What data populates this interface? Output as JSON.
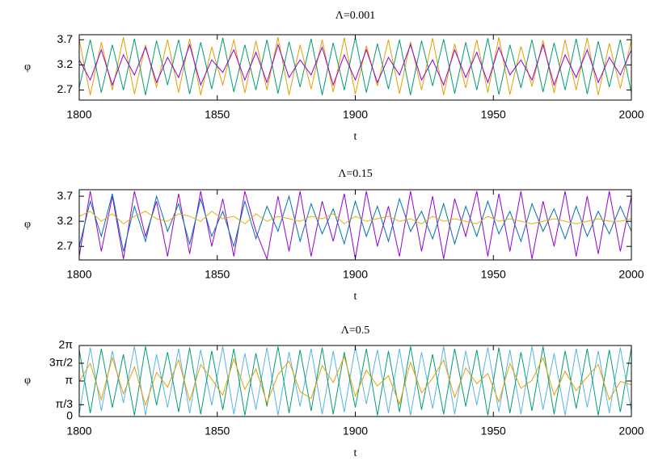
{
  "chart_data": [
    {
      "type": "line",
      "title": "Λ=0.001",
      "xlabel": "t",
      "ylabel": "φ",
      "x": [
        1800,
        1804,
        1808,
        1812,
        1816,
        1820,
        1824,
        1828,
        1832,
        1836,
        1840,
        1844,
        1848,
        1852,
        1856,
        1860,
        1864,
        1868,
        1872,
        1876,
        1880,
        1884,
        1888,
        1892,
        1896,
        1900,
        1904,
        1908,
        1912,
        1916,
        1920,
        1924,
        1928,
        1932,
        1936,
        1940,
        1944,
        1948,
        1952,
        1956,
        1960,
        1964,
        1968,
        1972,
        1976,
        1980,
        1984,
        1988,
        1992,
        1996,
        2000
      ],
      "xlim": [
        1800,
        2000
      ],
      "xticks": [
        1800,
        1850,
        1900,
        1950,
        2000
      ],
      "ylim": [
        2.5,
        3.8
      ],
      "yticks": [
        2.7,
        3.2,
        3.7
      ],
      "series": [
        {
          "color": "#e69f00",
          "values": [
            3.7,
            2.6,
            3.65,
            2.7,
            3.75,
            2.62,
            3.6,
            2.75,
            3.7,
            2.65,
            3.72,
            2.6,
            3.55,
            2.8,
            3.7,
            2.64,
            3.68,
            2.7,
            3.75,
            2.6,
            3.6,
            2.72,
            3.7,
            2.66,
            3.74,
            2.62,
            3.58,
            2.78,
            3.7,
            2.63,
            3.66,
            2.7,
            3.73,
            2.6,
            3.62,
            2.74,
            3.7,
            2.65,
            3.75,
            2.61,
            3.57,
            2.77,
            3.69,
            2.64,
            3.7,
            2.7,
            3.74,
            2.6,
            3.63,
            2.73,
            3.7
          ]
        },
        {
          "color": "#009e73",
          "values": [
            2.75,
            3.7,
            2.65,
            3.6,
            2.7,
            3.72,
            2.6,
            3.68,
            2.8,
            3.7,
            2.62,
            3.65,
            2.72,
            3.74,
            2.66,
            3.6,
            2.7,
            3.7,
            2.63,
            3.66,
            2.76,
            3.72,
            2.6,
            3.64,
            2.7,
            3.75,
            2.65,
            3.62,
            2.72,
            3.7,
            2.6,
            3.68,
            2.78,
            3.71,
            2.63,
            3.65,
            2.7,
            3.73,
            2.61,
            3.6,
            2.74,
            3.7,
            2.66,
            3.64,
            2.7,
            3.72,
            2.62,
            3.67,
            2.76,
            3.7,
            2.65
          ]
        },
        {
          "color": "#9400d3",
          "values": [
            3.3,
            2.9,
            3.5,
            2.8,
            3.4,
            3.0,
            3.55,
            2.85,
            3.35,
            2.95,
            3.6,
            2.8,
            3.3,
            3.05,
            3.5,
            2.9,
            3.45,
            2.85,
            3.6,
            2.95,
            3.3,
            3.0,
            3.55,
            2.8,
            3.4,
            2.9,
            3.5,
            2.85,
            3.35,
            3.0,
            3.6,
            2.9,
            3.3,
            2.8,
            3.5,
            2.95,
            3.45,
            2.85,
            3.55,
            3.0,
            3.3,
            2.9,
            3.6,
            2.8,
            3.4,
            2.95,
            3.5,
            2.85,
            3.35,
            3.0,
            3.5
          ]
        }
      ]
    },
    {
      "type": "line",
      "title": "Λ=0.15",
      "xlabel": "t",
      "ylabel": "φ",
      "x": [
        1800,
        1804,
        1808,
        1812,
        1816,
        1820,
        1824,
        1828,
        1832,
        1836,
        1840,
        1844,
        1848,
        1852,
        1856,
        1860,
        1864,
        1868,
        1872,
        1876,
        1880,
        1884,
        1888,
        1892,
        1896,
        1900,
        1904,
        1908,
        1912,
        1916,
        1920,
        1924,
        1928,
        1932,
        1936,
        1940,
        1944,
        1948,
        1952,
        1956,
        1960,
        1964,
        1968,
        1972,
        1976,
        1980,
        1984,
        1988,
        1992,
        1996,
        2000
      ],
      "xlim": [
        1800,
        2000
      ],
      "xticks": [
        1800,
        1850,
        1900,
        1950,
        2000
      ],
      "ylim": [
        2.43,
        3.83
      ],
      "yticks": [
        2.7,
        3.2,
        3.7
      ],
      "series": [
        {
          "color": "#9400d3",
          "values": [
            2.5,
            3.8,
            2.6,
            3.7,
            2.45,
            3.8,
            2.9,
            3.6,
            2.5,
            3.75,
            2.55,
            3.8,
            2.7,
            3.65,
            2.5,
            3.8,
            3.0,
            2.45,
            3.7,
            2.6,
            3.8,
            2.5,
            3.6,
            2.8,
            3.75,
            2.45,
            3.8,
            2.7,
            3.5,
            2.5,
            3.8,
            2.6,
            3.7,
            2.45,
            3.65,
            2.9,
            3.8,
            2.5,
            3.75,
            2.6,
            3.8,
            2.45,
            3.6,
            2.7,
            3.8,
            2.5,
            3.7,
            2.55,
            3.8,
            2.6,
            3.7
          ]
        },
        {
          "color": "#0072b2",
          "values": [
            2.7,
            3.6,
            2.9,
            3.75,
            2.6,
            3.5,
            2.8,
            3.7,
            3.0,
            3.55,
            2.75,
            3.65,
            2.9,
            3.4,
            2.7,
            3.6,
            2.85,
            3.5,
            3.0,
            3.7,
            2.8,
            3.55,
            2.95,
            3.45,
            2.75,
            3.6,
            2.9,
            3.5,
            2.8,
            3.65,
            3.0,
            3.4,
            2.85,
            3.55,
            2.75,
            3.5,
            2.9,
            3.6,
            2.95,
            3.4,
            2.8,
            3.55,
            3.0,
            3.45,
            2.85,
            3.5,
            2.9,
            3.4,
            2.95,
            3.5,
            3.0
          ]
        },
        {
          "color": "#e6b000",
          "values": [
            3.3,
            3.4,
            3.2,
            3.35,
            3.15,
            3.3,
            3.4,
            3.25,
            3.2,
            3.35,
            3.3,
            3.2,
            3.4,
            3.25,
            3.3,
            3.15,
            3.35,
            3.2,
            3.3,
            3.25,
            3.2,
            3.3,
            3.25,
            3.35,
            3.15,
            3.3,
            3.2,
            3.25,
            3.3,
            3.2,
            3.25,
            3.15,
            3.3,
            3.2,
            3.25,
            3.2,
            3.15,
            3.3,
            3.2,
            3.25,
            3.2,
            3.15,
            3.2,
            3.25,
            3.2,
            3.15,
            3.2,
            3.25,
            3.2,
            3.2,
            3.25
          ]
        }
      ]
    },
    {
      "type": "line",
      "title": "Λ=0.5",
      "xlabel": "t",
      "ylabel": "φ",
      "x": [
        1800,
        1804,
        1808,
        1812,
        1816,
        1820,
        1824,
        1828,
        1832,
        1836,
        1840,
        1844,
        1848,
        1852,
        1856,
        1860,
        1864,
        1868,
        1872,
        1876,
        1880,
        1884,
        1888,
        1892,
        1896,
        1900,
        1904,
        1908,
        1912,
        1916,
        1920,
        1924,
        1928,
        1932,
        1936,
        1940,
        1944,
        1948,
        1952,
        1956,
        1960,
        1964,
        1968,
        1972,
        1976,
        1980,
        1984,
        1988,
        1992,
        1996,
        2000
      ],
      "xlim": [
        1800,
        2000
      ],
      "xticks": [
        1800,
        1850,
        1900,
        1950,
        2000
      ],
      "ylim": [
        0,
        6.2832
      ],
      "yticks": [
        0,
        {
          "value": 1.0472,
          "label": "π/3"
        },
        {
          "value": 3.1416,
          "label": "π"
        },
        {
          "value": 4.7124,
          "label": "3π/2"
        },
        {
          "value": 6.2832,
          "label": "2π"
        }
      ],
      "series": [
        {
          "color": "#56b4e9",
          "values": [
            0.2,
            6.1,
            0.5,
            5.8,
            1.2,
            6.2,
            0.1,
            5.5,
            0.8,
            6.0,
            0.3,
            5.9,
            1.0,
            6.2,
            0.2,
            5.6,
            0.6,
            6.1,
            0.1,
            5.7,
            0.9,
            6.0,
            0.2,
            5.8,
            0.4,
            6.2,
            1.1,
            5.9,
            0.3,
            6.0,
            0.1,
            5.7,
            0.7,
            6.2,
            0.2,
            5.8,
            1.0,
            6.1,
            0.4,
            5.9,
            0.2,
            6.2,
            0.6,
            5.6,
            0.1,
            6.0,
            0.8,
            5.8,
            0.3,
            6.1,
            0.5
          ]
        },
        {
          "color": "#009e73",
          "values": [
            5.9,
            0.3,
            6.0,
            0.8,
            5.5,
            0.1,
            6.2,
            1.0,
            5.7,
            0.4,
            6.1,
            0.2,
            5.8,
            0.6,
            6.0,
            0.1,
            5.6,
            0.9,
            6.2,
            0.3,
            5.9,
            0.5,
            6.1,
            0.2,
            5.7,
            0.8,
            6.0,
            0.1,
            5.8,
            0.4,
            6.2,
            0.6,
            5.5,
            0.2,
            6.0,
            0.9,
            5.9,
            0.1,
            6.1,
            0.3,
            5.7,
            0.5,
            6.2,
            0.2,
            5.8,
            0.7,
            6.0,
            0.1,
            5.9,
            0.4,
            6.1
          ]
        },
        {
          "color": "#e69f00",
          "values": [
            3.1,
            4.7,
            1.5,
            5.2,
            2.0,
            4.4,
            1.0,
            3.9,
            2.6,
            5.0,
            1.4,
            4.6,
            3.3,
            1.9,
            5.1,
            2.4,
            4.2,
            1.2,
            3.7,
            4.9,
            2.2,
            1.6,
            4.5,
            3.0,
            5.3,
            1.8,
            4.1,
            2.7,
            3.6,
            1.1,
            4.8,
            2.1,
            3.4,
            5.0,
            1.7,
            4.3,
            2.9,
            3.8,
            1.3,
            4.7,
            2.5,
            3.2,
            5.2,
            1.9,
            4.0,
            2.3,
            3.5,
            4.6,
            1.5,
            3.1,
            2.8
          ]
        }
      ]
    }
  ]
}
